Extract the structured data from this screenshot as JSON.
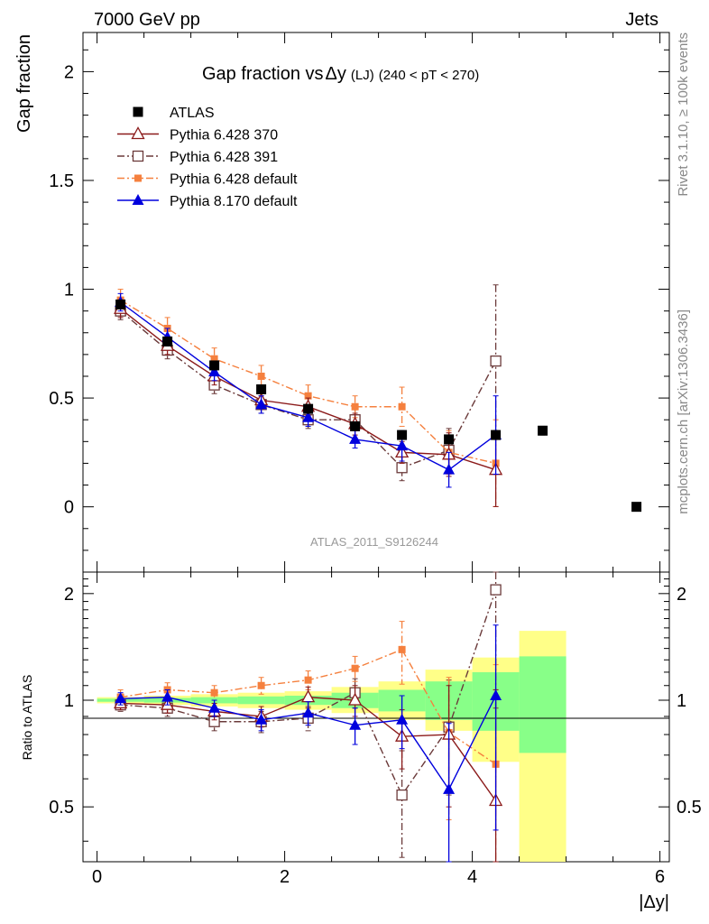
{
  "header": {
    "left": "7000 GeV pp",
    "right": "Jets"
  },
  "side_labels": {
    "rivet": "Rivet 3.1.10, ≥ 100k events",
    "mcplots": "mcplots.cern.ch [arXiv:1306.3436]"
  },
  "watermark": "ATLAS_2011_S9126244",
  "colors": {
    "atlas": "#000000",
    "py370": "#8b1a1a",
    "py391": "#6b3a3a",
    "py6def": "#f5803e",
    "py8def": "#0000dd",
    "band_yellow": "#ffff88",
    "band_green": "#88ff88"
  },
  "chart_data": [
    {
      "type": "scatter",
      "panel": "main",
      "title": "Gap fraction vs Δy (LJ) (240 < pT < 270)",
      "title_parts": {
        "main": "Gap fraction vs",
        "delta": "Δy",
        "sub": "(LJ)",
        "range": "(240 < pT < 270)"
      },
      "ylabel": "Gap fraction",
      "xlim": [
        -0.15,
        6.1
      ],
      "ylim": [
        -0.3,
        2.18
      ],
      "yticks": [
        0,
        0.5,
        1,
        1.5,
        2
      ],
      "ytick_labels": [
        "0",
        "0.5",
        "1",
        "1.5",
        "2"
      ],
      "x": [
        0.25,
        0.75,
        1.25,
        1.75,
        2.25,
        2.75,
        3.25,
        3.75,
        4.25,
        4.75,
        5.75
      ],
      "series": [
        {
          "name": "ATLAS",
          "key": "atlas",
          "marker": "square-filled",
          "line": "none",
          "values": [
            0.93,
            0.76,
            0.65,
            0.54,
            0.45,
            0.37,
            0.33,
            0.31,
            0.33,
            0.35,
            0.0
          ],
          "errors": [
            0.02,
            0.02,
            0.02,
            0.02,
            0.02,
            0.02,
            0.02,
            0.02,
            0.02,
            0.02,
            0.0
          ]
        },
        {
          "name": "Pythia 6.428 370",
          "key": "py370",
          "marker": "triangle-open",
          "line": "solid",
          "values": [
            0.91,
            0.74,
            0.6,
            0.49,
            0.46,
            0.38,
            0.25,
            0.24,
            0.17
          ],
          "errors": [
            0.04,
            0.04,
            0.04,
            0.04,
            0.04,
            0.05,
            0.05,
            0.1,
            0.18
          ]
        },
        {
          "name": "Pythia 6.428 391",
          "key": "py391",
          "marker": "square-open",
          "line": "dashdot",
          "values": [
            0.9,
            0.72,
            0.56,
            0.47,
            0.4,
            0.4,
            0.18,
            0.26,
            0.67
          ],
          "errors": [
            0.04,
            0.04,
            0.04,
            0.04,
            0.04,
            0.05,
            0.06,
            0.1,
            0.35
          ]
        },
        {
          "name": "Pythia 6.428 default",
          "key": "py6def",
          "marker": "square-filled-small",
          "line": "dashdot",
          "values": [
            0.95,
            0.82,
            0.68,
            0.6,
            0.51,
            0.46,
            0.46,
            0.25,
            0.2
          ],
          "errors": [
            0.05,
            0.05,
            0.05,
            0.05,
            0.05,
            0.05,
            0.09,
            0.1,
            0.2
          ]
        },
        {
          "name": "Pythia 8.170 default",
          "key": "py8def",
          "marker": "triangle-filled",
          "line": "solid",
          "values": [
            0.94,
            0.78,
            0.62,
            0.47,
            0.41,
            0.31,
            0.28,
            0.17,
            0.33
          ],
          "errors": [
            0.04,
            0.04,
            0.04,
            0.04,
            0.04,
            0.04,
            0.07,
            0.08,
            0.18
          ]
        }
      ]
    },
    {
      "type": "scatter",
      "panel": "ratio",
      "ylabel": "Ratio to ATLAS",
      "xlabel": "|Δy|",
      "xlim": [
        -0.15,
        6.1
      ],
      "ylim": [
        0.35,
        2.3
      ],
      "log_y": true,
      "yticks": [
        0.5,
        1,
        2
      ],
      "ytick_labels": [
        "0.5",
        "1",
        "2"
      ],
      "xticks": [
        0,
        2,
        4,
        6
      ],
      "xtick_labels": [
        "0",
        "2",
        "4",
        "6"
      ],
      "x": [
        0.25,
        0.75,
        1.25,
        1.75,
        2.25,
        2.75,
        3.25,
        3.75,
        4.25
      ],
      "bands": {
        "edges": [
          0,
          0.5,
          1,
          1.5,
          2,
          2.5,
          3,
          3.5,
          4,
          4.5,
          5
        ],
        "yellow": [
          [
            0.98,
            1.02
          ],
          [
            0.97,
            1.03
          ],
          [
            0.96,
            1.04
          ],
          [
            0.95,
            1.05
          ],
          [
            0.94,
            1.06
          ],
          [
            0.92,
            1.09
          ],
          [
            0.88,
            1.13
          ],
          [
            0.82,
            1.22
          ],
          [
            0.67,
            1.32
          ],
          [
            0.33,
            1.57
          ]
        ],
        "green": [
          [
            0.99,
            1.01
          ],
          [
            0.985,
            1.015
          ],
          [
            0.98,
            1.02
          ],
          [
            0.975,
            1.025
          ],
          [
            0.97,
            1.03
          ],
          [
            0.95,
            1.05
          ],
          [
            0.93,
            1.07
          ],
          [
            0.88,
            1.13
          ],
          [
            0.82,
            1.2
          ],
          [
            0.71,
            1.33
          ]
        ]
      },
      "series": [
        {
          "name": "Pythia 6.428 370",
          "key": "py370",
          "marker": "triangle-open",
          "line": "solid",
          "values": [
            0.98,
            0.97,
            0.93,
            0.9,
            1.02,
            1.0,
            0.79,
            0.8,
            0.52
          ],
          "errors": [
            0.04,
            0.05,
            0.05,
            0.06,
            0.07,
            0.1,
            0.15,
            0.3,
            0.55
          ]
        },
        {
          "name": "Pythia 6.428 391",
          "key": "py391",
          "marker": "square-open",
          "line": "dashdot",
          "values": [
            0.97,
            0.95,
            0.87,
            0.87,
            0.89,
            1.05,
            0.54,
            0.84,
            2.05
          ],
          "errors": [
            0.04,
            0.05,
            0.05,
            0.06,
            0.07,
            0.1,
            0.18,
            0.3,
            1.1
          ]
        },
        {
          "name": "Pythia 6.428 default",
          "key": "py6def",
          "marker": "square-filled-small",
          "line": "dashdot",
          "values": [
            1.02,
            1.07,
            1.05,
            1.1,
            1.14,
            1.23,
            1.39,
            0.81,
            0.66
          ],
          "errors": [
            0.05,
            0.05,
            0.05,
            0.06,
            0.07,
            0.1,
            0.28,
            0.35,
            0.6
          ]
        },
        {
          "name": "Pythia 8.170 default",
          "key": "py8def",
          "marker": "triangle-filled",
          "line": "solid",
          "values": [
            1.01,
            1.02,
            0.95,
            0.88,
            0.92,
            0.85,
            0.88,
            0.56,
            1.03
          ],
          "errors": [
            0.04,
            0.05,
            0.05,
            0.06,
            0.07,
            0.1,
            0.15,
            0.3,
            0.6
          ]
        }
      ]
    }
  ]
}
